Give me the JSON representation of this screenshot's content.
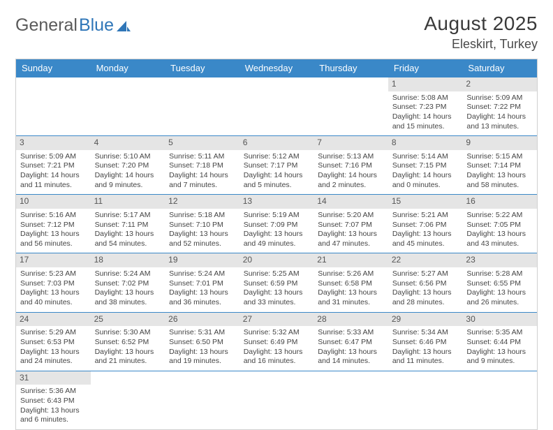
{
  "brand": {
    "part1": "General",
    "part2": "Blue"
  },
  "header": {
    "month_year": "August 2025",
    "location": "Eleskirt, Turkey"
  },
  "colors": {
    "header_bg": "#3a88c8",
    "header_text": "#ffffff",
    "daynum_bg": "#e5e5e5",
    "rule": "#3a88c8",
    "logo_gray": "#5a5a5a",
    "logo_blue": "#2f76b8"
  },
  "day_names": [
    "Sunday",
    "Monday",
    "Tuesday",
    "Wednesday",
    "Thursday",
    "Friday",
    "Saturday"
  ],
  "weeks": [
    [
      null,
      null,
      null,
      null,
      null,
      {
        "n": "1",
        "sr": "Sunrise: 5:08 AM",
        "ss": "Sunset: 7:23 PM",
        "dl1": "Daylight: 14 hours",
        "dl2": "and 15 minutes."
      },
      {
        "n": "2",
        "sr": "Sunrise: 5:09 AM",
        "ss": "Sunset: 7:22 PM",
        "dl1": "Daylight: 14 hours",
        "dl2": "and 13 minutes."
      }
    ],
    [
      {
        "n": "3",
        "sr": "Sunrise: 5:09 AM",
        "ss": "Sunset: 7:21 PM",
        "dl1": "Daylight: 14 hours",
        "dl2": "and 11 minutes."
      },
      {
        "n": "4",
        "sr": "Sunrise: 5:10 AM",
        "ss": "Sunset: 7:20 PM",
        "dl1": "Daylight: 14 hours",
        "dl2": "and 9 minutes."
      },
      {
        "n": "5",
        "sr": "Sunrise: 5:11 AM",
        "ss": "Sunset: 7:18 PM",
        "dl1": "Daylight: 14 hours",
        "dl2": "and 7 minutes."
      },
      {
        "n": "6",
        "sr": "Sunrise: 5:12 AM",
        "ss": "Sunset: 7:17 PM",
        "dl1": "Daylight: 14 hours",
        "dl2": "and 5 minutes."
      },
      {
        "n": "7",
        "sr": "Sunrise: 5:13 AM",
        "ss": "Sunset: 7:16 PM",
        "dl1": "Daylight: 14 hours",
        "dl2": "and 2 minutes."
      },
      {
        "n": "8",
        "sr": "Sunrise: 5:14 AM",
        "ss": "Sunset: 7:15 PM",
        "dl1": "Daylight: 14 hours",
        "dl2": "and 0 minutes."
      },
      {
        "n": "9",
        "sr": "Sunrise: 5:15 AM",
        "ss": "Sunset: 7:14 PM",
        "dl1": "Daylight: 13 hours",
        "dl2": "and 58 minutes."
      }
    ],
    [
      {
        "n": "10",
        "sr": "Sunrise: 5:16 AM",
        "ss": "Sunset: 7:12 PM",
        "dl1": "Daylight: 13 hours",
        "dl2": "and 56 minutes."
      },
      {
        "n": "11",
        "sr": "Sunrise: 5:17 AM",
        "ss": "Sunset: 7:11 PM",
        "dl1": "Daylight: 13 hours",
        "dl2": "and 54 minutes."
      },
      {
        "n": "12",
        "sr": "Sunrise: 5:18 AM",
        "ss": "Sunset: 7:10 PM",
        "dl1": "Daylight: 13 hours",
        "dl2": "and 52 minutes."
      },
      {
        "n": "13",
        "sr": "Sunrise: 5:19 AM",
        "ss": "Sunset: 7:09 PM",
        "dl1": "Daylight: 13 hours",
        "dl2": "and 49 minutes."
      },
      {
        "n": "14",
        "sr": "Sunrise: 5:20 AM",
        "ss": "Sunset: 7:07 PM",
        "dl1": "Daylight: 13 hours",
        "dl2": "and 47 minutes."
      },
      {
        "n": "15",
        "sr": "Sunrise: 5:21 AM",
        "ss": "Sunset: 7:06 PM",
        "dl1": "Daylight: 13 hours",
        "dl2": "and 45 minutes."
      },
      {
        "n": "16",
        "sr": "Sunrise: 5:22 AM",
        "ss": "Sunset: 7:05 PM",
        "dl1": "Daylight: 13 hours",
        "dl2": "and 43 minutes."
      }
    ],
    [
      {
        "n": "17",
        "sr": "Sunrise: 5:23 AM",
        "ss": "Sunset: 7:03 PM",
        "dl1": "Daylight: 13 hours",
        "dl2": "and 40 minutes."
      },
      {
        "n": "18",
        "sr": "Sunrise: 5:24 AM",
        "ss": "Sunset: 7:02 PM",
        "dl1": "Daylight: 13 hours",
        "dl2": "and 38 minutes."
      },
      {
        "n": "19",
        "sr": "Sunrise: 5:24 AM",
        "ss": "Sunset: 7:01 PM",
        "dl1": "Daylight: 13 hours",
        "dl2": "and 36 minutes."
      },
      {
        "n": "20",
        "sr": "Sunrise: 5:25 AM",
        "ss": "Sunset: 6:59 PM",
        "dl1": "Daylight: 13 hours",
        "dl2": "and 33 minutes."
      },
      {
        "n": "21",
        "sr": "Sunrise: 5:26 AM",
        "ss": "Sunset: 6:58 PM",
        "dl1": "Daylight: 13 hours",
        "dl2": "and 31 minutes."
      },
      {
        "n": "22",
        "sr": "Sunrise: 5:27 AM",
        "ss": "Sunset: 6:56 PM",
        "dl1": "Daylight: 13 hours",
        "dl2": "and 28 minutes."
      },
      {
        "n": "23",
        "sr": "Sunrise: 5:28 AM",
        "ss": "Sunset: 6:55 PM",
        "dl1": "Daylight: 13 hours",
        "dl2": "and 26 minutes."
      }
    ],
    [
      {
        "n": "24",
        "sr": "Sunrise: 5:29 AM",
        "ss": "Sunset: 6:53 PM",
        "dl1": "Daylight: 13 hours",
        "dl2": "and 24 minutes."
      },
      {
        "n": "25",
        "sr": "Sunrise: 5:30 AM",
        "ss": "Sunset: 6:52 PM",
        "dl1": "Daylight: 13 hours",
        "dl2": "and 21 minutes."
      },
      {
        "n": "26",
        "sr": "Sunrise: 5:31 AM",
        "ss": "Sunset: 6:50 PM",
        "dl1": "Daylight: 13 hours",
        "dl2": "and 19 minutes."
      },
      {
        "n": "27",
        "sr": "Sunrise: 5:32 AM",
        "ss": "Sunset: 6:49 PM",
        "dl1": "Daylight: 13 hours",
        "dl2": "and 16 minutes."
      },
      {
        "n": "28",
        "sr": "Sunrise: 5:33 AM",
        "ss": "Sunset: 6:47 PM",
        "dl1": "Daylight: 13 hours",
        "dl2": "and 14 minutes."
      },
      {
        "n": "29",
        "sr": "Sunrise: 5:34 AM",
        "ss": "Sunset: 6:46 PM",
        "dl1": "Daylight: 13 hours",
        "dl2": "and 11 minutes."
      },
      {
        "n": "30",
        "sr": "Sunrise: 5:35 AM",
        "ss": "Sunset: 6:44 PM",
        "dl1": "Daylight: 13 hours",
        "dl2": "and 9 minutes."
      }
    ],
    [
      {
        "n": "31",
        "sr": "Sunrise: 5:36 AM",
        "ss": "Sunset: 6:43 PM",
        "dl1": "Daylight: 13 hours",
        "dl2": "and 6 minutes."
      },
      null,
      null,
      null,
      null,
      null,
      null
    ]
  ]
}
